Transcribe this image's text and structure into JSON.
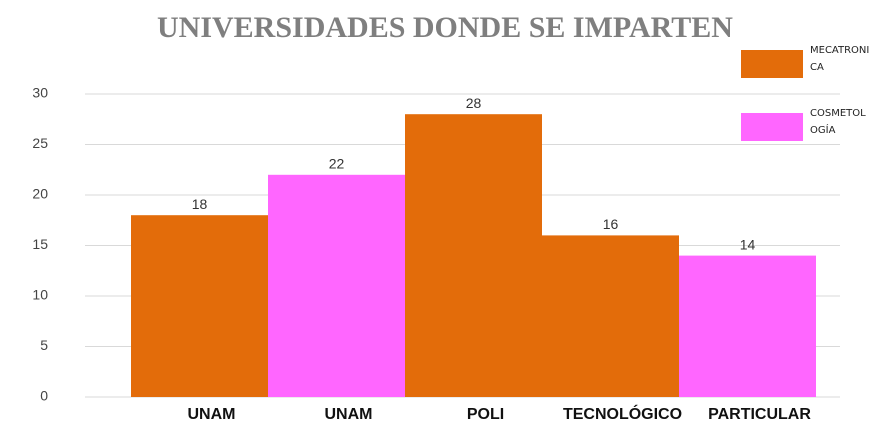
{
  "chart_data": {
    "type": "bar",
    "title": "UNIVERSIDADES DONDE SE IMPARTEN",
    "categories": [
      "UNAM",
      "UNAM",
      "POLI",
      "TECNOLÓGICO",
      "PARTICULAR"
    ],
    "series": [
      {
        "name": "MECATRONICA",
        "color": "#e36c0a",
        "values": [
          18,
          null,
          28,
          16,
          null
        ]
      },
      {
        "name": "COSMETOLOGÍA",
        "color": "#ff66ff",
        "values": [
          null,
          22,
          null,
          null,
          14
        ]
      }
    ],
    "ylim": [
      0,
      30
    ],
    "yticks": [
      0,
      5,
      10,
      15,
      20,
      25,
      30
    ],
    "grid": true
  }
}
